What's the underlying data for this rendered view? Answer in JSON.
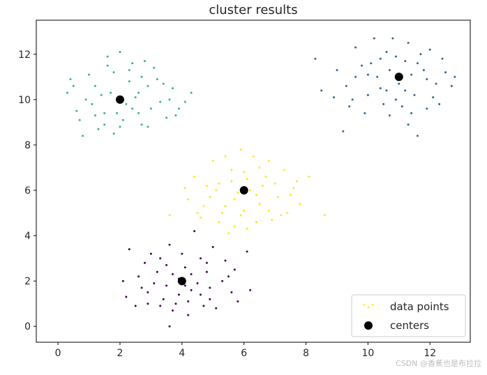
{
  "chart_data": {
    "type": "scatter",
    "title": "cluster results",
    "xlabel": "",
    "ylabel": "",
    "xlim": [
      -0.7,
      13.3
    ],
    "ylim": [
      -0.7,
      13.5
    ],
    "xticks": [
      "0",
      "2",
      "4",
      "6",
      "8",
      "10",
      "12"
    ],
    "yticks": [
      "0",
      "2",
      "4",
      "6",
      "8",
      "10",
      "12"
    ],
    "legend": {
      "position": "bottom-right",
      "entries": [
        "data points",
        "centers"
      ]
    },
    "series": [
      {
        "name": "data points",
        "marker": "dot",
        "clusters": [
          {
            "color": "#440154",
            "points": [
              [
                2.2,
                1.3
              ],
              [
                2.9,
                1.5
              ],
              [
                3.4,
                1.2
              ],
              [
                4.3,
                1.6
              ],
              [
                4.9,
                1.2
              ],
              [
                5.6,
                1.5
              ],
              [
                3.7,
                2.3
              ],
              [
                4.1,
                2.6
              ],
              [
                3.2,
                2.4
              ],
              [
                4.8,
                2.4
              ],
              [
                5.3,
                2.0
              ],
              [
                2.6,
                2.2
              ],
              [
                3.5,
                1.8
              ],
              [
                4.5,
                1.9
              ],
              [
                3.9,
                1.4
              ],
              [
                4.6,
                3.0
              ],
              [
                3.0,
                3.2
              ],
              [
                4.2,
                0.5
              ],
              [
                3.7,
                0.7
              ],
              [
                5.0,
                3.5
              ],
              [
                4.4,
                4.2
              ],
              [
                6.1,
                3.3
              ],
              [
                2.3,
                3.4
              ],
              [
                5.7,
                2.5
              ],
              [
                3.3,
                0.9
              ],
              [
                4.7,
                0.9
              ],
              [
                2.8,
                2.8
              ],
              [
                4.0,
                3.2
              ],
              [
                3.6,
                3.6
              ],
              [
                5.4,
                2.9
              ],
              [
                6.2,
                1.6
              ],
              [
                2.5,
                0.9
              ],
              [
                5.1,
                0.8
              ],
              [
                3.8,
                1.0
              ],
              [
                4.3,
                2.3
              ],
              [
                3.1,
                1.9
              ],
              [
                4.9,
                1.7
              ],
              [
                5.8,
                1.1
              ],
              [
                2.9,
                1.0
              ],
              [
                3.5,
                2.7
              ],
              [
                4.1,
                1.8
              ],
              [
                4.6,
                1.4
              ],
              [
                3.3,
                3.0
              ],
              [
                2.1,
                2.0
              ],
              [
                5.5,
                2.2
              ],
              [
                3.6,
                0.0
              ],
              [
                4.8,
                2.8
              ],
              [
                4.2,
                1.1
              ],
              [
                3.9,
                2.1
              ],
              [
                2.7,
                1.7
              ]
            ]
          },
          {
            "color": "#31688e",
            "points": [
              [
                10.1,
                11.6
              ],
              [
                10.6,
                12.1
              ],
              [
                11.2,
                11.7
              ],
              [
                11.8,
                11.3
              ],
              [
                12.2,
                10.7
              ],
              [
                10.4,
                10.5
              ],
              [
                10.9,
                10.0
              ],
              [
                11.5,
                10.2
              ],
              [
                9.6,
                11.0
              ],
              [
                10.0,
                10.2
              ],
              [
                11.3,
                12.5
              ],
              [
                12.4,
                11.8
              ],
              [
                12.7,
                10.6
              ],
              [
                9.3,
                10.6
              ],
              [
                9.2,
                8.6
              ],
              [
                11.6,
                8.4
              ],
              [
                8.5,
                10.4
              ],
              [
                8.3,
                11.8
              ],
              [
                9.6,
                12.3
              ],
              [
                11.9,
                9.6
              ],
              [
                10.7,
                11.3
              ],
              [
                11.0,
                10.7
              ],
              [
                10.3,
                11.0
              ],
              [
                11.4,
                11.1
              ],
              [
                10.8,
                12.7
              ],
              [
                9.9,
                9.4
              ],
              [
                12.0,
                12.2
              ],
              [
                11.1,
                9.7
              ],
              [
                10.5,
                9.8
              ],
              [
                12.5,
                11.2
              ],
              [
                9.5,
                10.0
              ],
              [
                10.2,
                12.7
              ],
              [
                11.7,
                12.0
              ],
              [
                12.1,
                10.1
              ],
              [
                10.6,
                10.4
              ],
              [
                11.4,
                9.4
              ],
              [
                9.8,
                11.5
              ],
              [
                10.9,
                11.9
              ],
              [
                11.9,
                10.9
              ],
              [
                12.3,
                9.8
              ],
              [
                8.9,
                10.1
              ],
              [
                9.0,
                11.3
              ],
              [
                10.0,
                11.1
              ],
              [
                11.2,
                10.4
              ],
              [
                10.4,
                11.8
              ],
              [
                11.6,
                11.6
              ],
              [
                12.8,
                11.0
              ],
              [
                9.4,
                9.7
              ],
              [
                10.7,
                9.3
              ],
              [
                11.3,
                8.9
              ]
            ]
          },
          {
            "color": "#35b779",
            "points": [
              [
                1.2,
                10.6
              ],
              [
                1.8,
                11.2
              ],
              [
                2.3,
                10.8
              ],
              [
                2.6,
                10.3
              ],
              [
                3.0,
                9.6
              ],
              [
                1.5,
                9.4
              ],
              [
                2.1,
                9.1
              ],
              [
                2.7,
                8.9
              ],
              [
                0.9,
                10.0
              ],
              [
                0.6,
                9.5
              ],
              [
                1.6,
                11.9
              ],
              [
                2.4,
                11.6
              ],
              [
                3.2,
                10.9
              ],
              [
                3.7,
                10.5
              ],
              [
                4.1,
                9.9
              ],
              [
                4.3,
                10.3
              ],
              [
                0.3,
                10.3
              ],
              [
                0.4,
                10.9
              ],
              [
                0.8,
                8.4
              ],
              [
                2.8,
                11.7
              ],
              [
                2.0,
                12.1
              ],
              [
                1.3,
                8.7
              ],
              [
                3.5,
                9.2
              ],
              [
                3.9,
                9.6
              ],
              [
                1.7,
                10.3
              ],
              [
                2.2,
                9.8
              ],
              [
                2.5,
                10.1
              ],
              [
                1.1,
                9.8
              ],
              [
                1.9,
                10.0
              ],
              [
                2.9,
                10.6
              ],
              [
                3.3,
                9.9
              ],
              [
                1.4,
                10.2
              ],
              [
                2.6,
                9.4
              ],
              [
                0.7,
                9.1
              ],
              [
                1.0,
                11.1
              ],
              [
                2.9,
                8.8
              ],
              [
                3.6,
                10.0
              ],
              [
                1.5,
                8.9
              ],
              [
                2.3,
                11.3
              ],
              [
                3.1,
                11.4
              ],
              [
                0.5,
                10.6
              ],
              [
                1.8,
                8.5
              ],
              [
                2.7,
                11.0
              ],
              [
                3.8,
                9.3
              ],
              [
                2.0,
                8.8
              ],
              [
                1.2,
                9.3
              ],
              [
                3.4,
                10.7
              ],
              [
                2.4,
                9.6
              ],
              [
                1.6,
                11.5
              ],
              [
                1.9,
                9.4
              ]
            ]
          },
          {
            "color": "#fde725",
            "points": [
              [
                5.2,
                6.3
              ],
              [
                5.6,
                6.9
              ],
              [
                6.1,
                6.5
              ],
              [
                6.6,
                6.2
              ],
              [
                7.1,
                5.7
              ],
              [
                4.9,
                5.7
              ],
              [
                5.4,
                5.3
              ],
              [
                6.0,
                5.1
              ],
              [
                6.4,
                4.6
              ],
              [
                5.7,
                4.4
              ],
              [
                4.6,
                4.8
              ],
              [
                4.4,
                6.6
              ],
              [
                5.0,
                7.3
              ],
              [
                5.9,
                7.8
              ],
              [
                6.8,
                7.3
              ],
              [
                7.3,
                6.9
              ],
              [
                7.6,
                6.1
              ],
              [
                7.8,
                5.4
              ],
              [
                8.1,
                6.6
              ],
              [
                8.6,
                4.9
              ],
              [
                3.6,
                4.9
              ],
              [
                4.2,
                5.6
              ],
              [
                6.3,
                7.5
              ],
              [
                5.5,
                4.1
              ],
              [
                6.9,
                4.7
              ],
              [
                7.4,
                5.0
              ],
              [
                5.1,
                6.0
              ],
              [
                5.8,
                5.9
              ],
              [
                6.2,
                6.0
              ],
              [
                6.5,
                5.4
              ],
              [
                5.3,
                5.0
              ],
              [
                4.8,
                6.2
              ],
              [
                6.7,
                6.6
              ],
              [
                7.0,
                6.3
              ],
              [
                5.6,
                6.4
              ],
              [
                6.0,
                6.8
              ],
              [
                5.9,
                4.9
              ],
              [
                4.7,
                5.3
              ],
              [
                7.2,
                4.9
              ],
              [
                6.5,
                7.0
              ],
              [
                5.2,
                4.6
              ],
              [
                7.5,
                5.8
              ],
              [
                4.1,
                6.1
              ],
              [
                6.8,
                5.1
              ],
              [
                5.4,
                7.5
              ],
              [
                6.1,
                4.3
              ],
              [
                7.7,
                6.4
              ],
              [
                4.5,
                5.0
              ],
              [
                6.4,
                5.8
              ],
              [
                5.7,
                5.6
              ]
            ]
          }
        ]
      },
      {
        "name": "centers",
        "marker": "circle",
        "color": "#000000",
        "points": [
          [
            2.0,
            10.0
          ],
          [
            11.0,
            11.0
          ],
          [
            4.0,
            2.0
          ],
          [
            6.0,
            6.0
          ]
        ]
      }
    ]
  },
  "watermark": "CSDN @香蕉也是布拉拉"
}
